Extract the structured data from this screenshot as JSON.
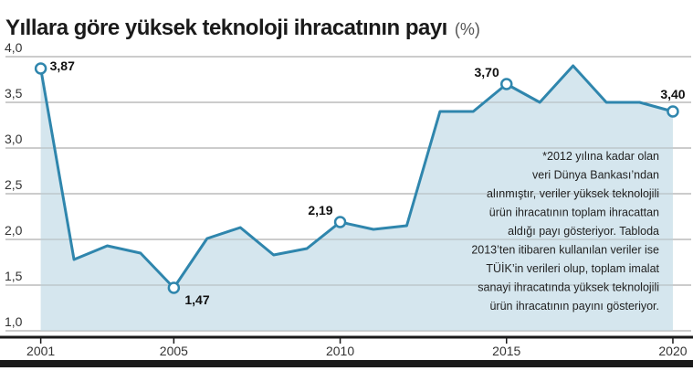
{
  "chart_data": {
    "type": "area",
    "title": "Yıllara göre yüksek teknoloji ihracatının payı",
    "subtitle": "(%)",
    "x": [
      2001,
      2002,
      2003,
      2004,
      2005,
      2006,
      2007,
      2008,
      2009,
      2010,
      2011,
      2012,
      2013,
      2014,
      2015,
      2016,
      2017,
      2018,
      2019,
      2020
    ],
    "values": [
      3.87,
      1.78,
      1.93,
      1.85,
      1.47,
      2.01,
      2.13,
      1.83,
      1.9,
      2.19,
      2.11,
      2.15,
      3.4,
      3.4,
      3.7,
      3.5,
      3.9,
      3.5,
      3.5,
      3.4
    ],
    "value_labels": [
      "3,87",
      null,
      null,
      null,
      "1,47",
      null,
      null,
      null,
      null,
      "2,19",
      null,
      null,
      null,
      null,
      "3,70",
      null,
      null,
      null,
      null,
      "3,40"
    ],
    "color": "#2f86ad",
    "fill_color": "#d5e6ee",
    "xlim": [
      2000.05,
      2020.55
    ],
    "xticks": [
      2001,
      2005,
      2010,
      2015,
      2020
    ],
    "ylim": [
      1.0,
      4.0
    ],
    "yticks": [
      {
        "value": 1.0,
        "label": "1,0"
      },
      {
        "value": 1.5,
        "label": "1,5"
      },
      {
        "value": 2.0,
        "label": "2,0"
      },
      {
        "value": 2.5,
        "label": "2,5"
      },
      {
        "value": 3.0,
        "label": "3,0"
      },
      {
        "value": 3.5,
        "label": "3,5"
      },
      {
        "value": 4.0,
        "label": "4,0"
      }
    ],
    "grid": true,
    "note": [
      "*2012 yılına kadar olan",
      "veri Dünya Bankası’ndan",
      "alınmıştır, veriler yüksek teknolojili",
      "ürün ihracatının toplam ihracattan",
      "aldığı payı gösteriyor. Tabloda",
      "2013’ten itibaren kullanılan veriler ise",
      "TÜİK’in verileri olup, toplam imalat",
      "sanayi ihracatında yüksek teknolojili",
      "ürün ihracatının payını gösteriyor."
    ]
  }
}
